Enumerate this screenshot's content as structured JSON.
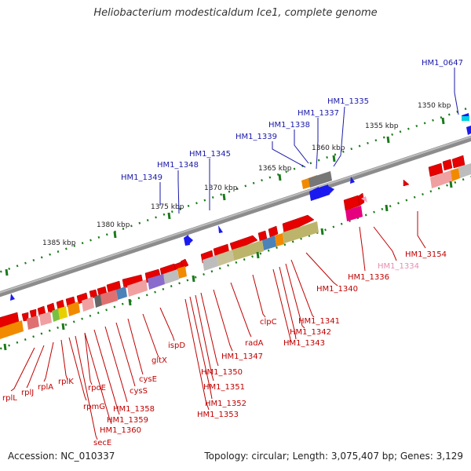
{
  "title": "Heliobacterium modesticaldum Ice1, complete genome",
  "footer": {
    "accession": "Accession: NC_010337",
    "summary": "Topology: circular; Length: 3,075,407 bp; Genes: 3,129"
  },
  "scale_labels": [
    "1350 kbp",
    "1355 kbp",
    "1360 kbp",
    "1365 kbp",
    "1370 kbp",
    "1375 kbp",
    "1380 kbp",
    "1385 kbp"
  ],
  "top_genes": [
    "HM1_0647",
    "HM1_1335",
    "HM1_1337",
    "HM1_1338",
    "HM1_1339",
    "HM1_1345",
    "HM1_1348",
    "HM1_1349"
  ],
  "bottom_genes": [
    "HM1_3154",
    "HM1_1334",
    "HM1_1336",
    "HM1_1340",
    "HM1_1341",
    "HM1_1342",
    "HM1_1343",
    "clpC",
    "radA",
    "HM1_1347",
    "HM1_1350",
    "HM1_1351",
    "HM1_1352",
    "HM1_1353",
    "ispD",
    "gltX",
    "cysE",
    "cysS",
    "HM1_1358",
    "HM1_1359",
    "HM1_1360",
    "secE",
    "rpmG",
    "rpoE",
    "rplK",
    "rplA",
    "rplJ",
    "rplL"
  ],
  "colors": {
    "top_label": "#1a1aaa",
    "bottom_label": "#c00000",
    "faded_label": "#e58fb0",
    "scale_tick": "#1a7a1a",
    "backbone": "#8c8c8c"
  }
}
